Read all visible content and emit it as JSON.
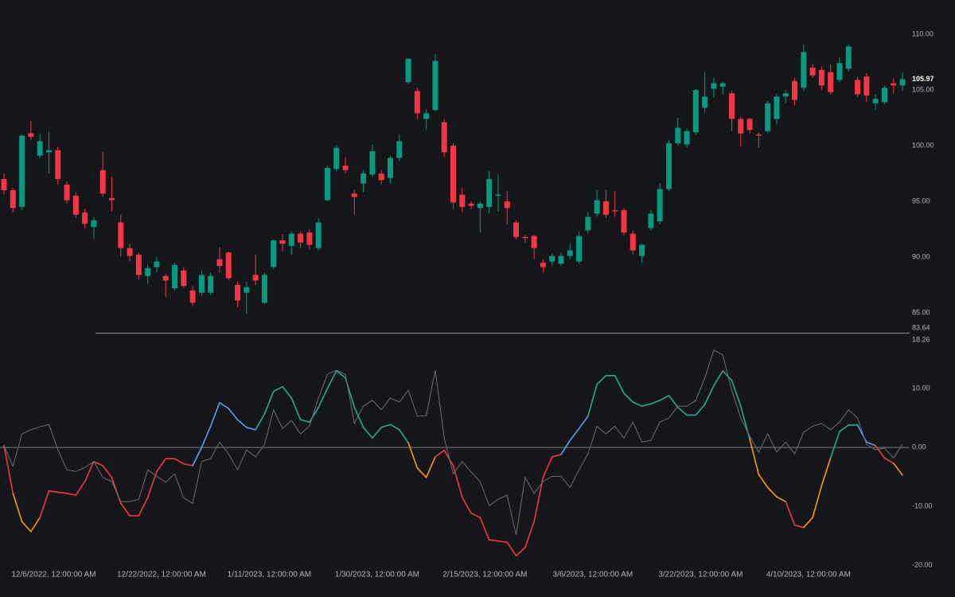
{
  "chart_data": [
    {
      "type": "candlestick",
      "categories": [
        null,
        null,
        null,
        null,
        null,
        "12/6/2022, 12:00:00 AM",
        null,
        null,
        null,
        null,
        null,
        null,
        null,
        null,
        null,
        null,
        null,
        "12/22/2022, 12:00:00 AM",
        null,
        null,
        null,
        null,
        null,
        null,
        null,
        null,
        null,
        null,
        null,
        "1/11/2023, 12:00:00 AM",
        null,
        null,
        null,
        null,
        null,
        null,
        null,
        null,
        null,
        null,
        null,
        "1/30/2023, 12:00:00 AM",
        null,
        null,
        null,
        null,
        null,
        null,
        null,
        null,
        null,
        null,
        null,
        "2/15/2023, 12:00:00 AM",
        null,
        null,
        null,
        null,
        null,
        null,
        null,
        null,
        null,
        null,
        null,
        "3/6/2023, 12:00:00 AM",
        null,
        null,
        null,
        null,
        null,
        null,
        null,
        null,
        null,
        null,
        null,
        "3/22/2023, 12:00:00 AM",
        null,
        null,
        null,
        null,
        null,
        null,
        null,
        null,
        null,
        null,
        null,
        "4/10/2023, 12:00:00 AM",
        null,
        null,
        null,
        null,
        null,
        null,
        null,
        null,
        null,
        null,
        null
      ],
      "open": [
        97.0,
        96.0,
        94.5,
        101.1,
        99.1,
        99.4,
        99.6,
        96.5,
        95.5,
        94.0,
        92.7,
        97.8,
        95.3,
        93.1,
        90.8,
        90.2,
        88.3,
        89.1,
        88.3,
        87.2,
        88.8,
        87.0,
        86.8,
        86.8,
        89.8,
        90.4,
        87.5,
        86.8,
        88.4,
        85.9,
        89.1,
        91.5,
        91.0,
        92.1,
        92.2,
        90.8,
        95.1,
        97.9,
        98.2,
        95.7,
        96.6,
        97.4,
        97.5,
        97.1,
        98.9,
        105.7,
        104.9,
        102.4,
        103.2,
        102.1,
        100.0,
        95.6,
        94.8,
        94.4,
        94.5,
        95.5,
        95.0,
        93.1,
        91.8,
        91.9,
        89.5,
        89.6,
        89.4,
        90.1,
        89.6,
        92.4,
        93.9,
        95.0,
        94.2,
        94.2,
        92.1,
        90.1,
        92.6,
        93.2,
        96.1,
        100.2,
        100.1,
        101.2,
        103.4,
        105.1,
        105.3,
        104.7,
        102.4,
        102.4,
        101.0,
        101.3,
        102.4,
        104.4,
        105.8,
        105.2,
        107.0,
        106.8,
        106.6,
        105.9,
        106.9,
        105.9,
        106.2,
        103.8,
        103.9,
        105.6,
        105.4
      ],
      "high": [
        97.5,
        96.2,
        101.0,
        102.2,
        101.1,
        101.3,
        99.9,
        96.8,
        95.8,
        94.3,
        93.6,
        99.5,
        97.2,
        93.8,
        91.2,
        90.4,
        89.3,
        90.0,
        88.5,
        89.5,
        89.1,
        87.4,
        88.8,
        88.6,
        90.9,
        90.5,
        87.8,
        87.8,
        90.2,
        88.6,
        91.6,
        92.0,
        92.3,
        92.3,
        92.5,
        93.5,
        98.2,
        100.0,
        99.0,
        96.0,
        97.8,
        100.1,
        97.8,
        99.1,
        101.0,
        107.8,
        105.2,
        103.3,
        108.2,
        102.4,
        100.2,
        96.2,
        95.0,
        95.0,
        97.7,
        97.4,
        95.9,
        93.3,
        92.0,
        92.0,
        89.8,
        90.3,
        90.4,
        91.2,
        92.3,
        94.0,
        96.0,
        96.0,
        95.9,
        94.4,
        92.4,
        91.2,
        94.2,
        96.6,
        100.5,
        102.5,
        101.5,
        105.1,
        106.6,
        106.1,
        105.7,
        104.9,
        102.6,
        102.5,
        101.2,
        104.0,
        104.6,
        105.0,
        106.1,
        109.1,
        107.3,
        107.1,
        107.3,
        107.9,
        109.1,
        106.2,
        106.5,
        104.6,
        105.4,
        106.0,
        106.6
      ],
      "low": [
        95.6,
        94.0,
        94.2,
        100.5,
        98.9,
        97.5,
        96.5,
        94.8,
        93.5,
        92.6,
        91.6,
        95.4,
        94.1,
        90.0,
        89.6,
        88.0,
        87.6,
        88.6,
        86.4,
        87.0,
        87.2,
        85.6,
        86.5,
        86.6,
        88.6,
        87.9,
        85.5,
        84.9,
        87.5,
        85.8,
        88.9,
        90.5,
        90.2,
        90.8,
        90.7,
        90.6,
        95.0,
        97.7,
        97.5,
        93.8,
        95.8,
        97.2,
        96.5,
        96.6,
        98.6,
        105.5,
        102.4,
        101.4,
        103.1,
        99.0,
        94.3,
        94.0,
        94.3,
        92.2,
        93.9,
        94.1,
        92.9,
        91.6,
        91.3,
        89.8,
        88.6,
        89.2,
        89.2,
        89.8,
        89.4,
        92.1,
        93.6,
        93.5,
        93.6,
        91.9,
        90.2,
        89.5,
        92.4,
        93.0,
        95.9,
        100.0,
        99.8,
        101.0,
        103.0,
        104.3,
        104.6,
        101.3,
        99.9,
        101.1,
        99.8,
        101.1,
        101.9,
        103.8,
        103.6,
        104.9,
        106.1,
        105.0,
        104.6,
        105.7,
        106.7,
        104.4,
        103.9,
        103.2,
        103.7,
        104.7,
        104.9
      ],
      "close": [
        96.0,
        94.4,
        100.9,
        100.8,
        100.4,
        99.6,
        97.0,
        95.1,
        93.8,
        93.0,
        93.3,
        95.7,
        95.1,
        90.8,
        90.1,
        88.4,
        89.0,
        89.6,
        87.9,
        89.3,
        87.4,
        85.9,
        88.4,
        88.3,
        89.2,
        88.1,
        86.1,
        87.3,
        87.9,
        88.4,
        91.5,
        91.2,
        92.1,
        91.3,
        91.1,
        93.1,
        98.0,
        99.8,
        97.8,
        95.4,
        97.5,
        99.5,
        96.9,
        98.9,
        100.4,
        107.8,
        102.9,
        102.9,
        107.6,
        99.4,
        94.9,
        94.5,
        94.6,
        94.8,
        97.0,
        95.6,
        94.4,
        91.8,
        91.7,
        90.8,
        89.1,
        90.1,
        90.1,
        90.6,
        91.9,
        93.6,
        95.1,
        93.8,
        94.1,
        92.2,
        90.6,
        91.1,
        93.9,
        96.1,
        100.2,
        101.6,
        101.3,
        105.0,
        104.4,
        105.6,
        105.6,
        102.4,
        101.1,
        101.4,
        100.9,
        103.8,
        104.4,
        104.7,
        104.1,
        108.4,
        106.3,
        105.4,
        104.8,
        107.4,
        108.9,
        104.6,
        104.5,
        104.2,
        105.2,
        105.4,
        105.97
      ],
      "up_color": "#089981",
      "down_color": "#f23645",
      "ylim": [
        83.21,
        113.07
      ],
      "yticks": [
        {
          "value": 110,
          "label": "110.00"
        },
        {
          "value": 105,
          "label": "105.00"
        },
        {
          "value": 100,
          "label": "100.00"
        },
        {
          "value": 95,
          "label": "95.00"
        },
        {
          "value": 90,
          "label": "90.00"
        },
        {
          "value": 85,
          "label": "85.00"
        },
        83.64
      ],
      "last_price": 105.97
    },
    {
      "type": "line",
      "ylim": [
        -20.4,
        18.26
      ],
      "yticks": [
        18.26,
        {
          "value": 10,
          "label": "10.00"
        },
        {
          "value": 0,
          "label": "0.00"
        },
        {
          "value": -10,
          "label": "-10.00"
        },
        {
          "value": -20,
          "label": "-20.00"
        }
      ],
      "baseline": 0,
      "series": [
        {
          "values": [
            0.3,
            -7.8,
            -12.6,
            -14.3,
            -11.9,
            -7.4,
            -7.6,
            -7.8,
            -8.1,
            -5.8,
            -2.4,
            -3.1,
            -5.1,
            -9.5,
            -11.6,
            -11.6,
            -8.5,
            -4.1,
            -1.9,
            -1.9,
            -2.8,
            -3.1,
            0,
            3.6,
            7.6,
            6.6,
            4.7,
            3.4,
            3.0,
            5.7,
            9.5,
            10.3,
            8.4,
            4.7,
            4.3,
            6.8,
            10.0,
            13.0,
            11.8,
            6.8,
            3.4,
            1.6,
            3.4,
            3.9,
            3.0,
            0.8,
            -3.5,
            -5.1,
            -1.6,
            -0.5,
            -3.1,
            -8.5,
            -11.2,
            -11.9,
            -15.7,
            -15.9,
            -16.1,
            -18.4,
            -17.0,
            -12.6,
            -5.1,
            -1.6,
            -1.2,
            1.2,
            3.2,
            5.3,
            10.7,
            12.2,
            12.2,
            9.2,
            7.7,
            7.0,
            7.4,
            8.0,
            8.8,
            6.8,
            5.5,
            5.5,
            7.3,
            10.5,
            13.0,
            11.4,
            7.0,
            1.4,
            -4.6,
            -6.8,
            -8.4,
            -9.2,
            -13.2,
            -13.6,
            -11.9,
            -6.5,
            -1.8,
            2.7,
            3.8,
            3.8,
            0.9,
            0.3,
            -1.8,
            -2.7,
            -4.7
          ],
          "colors": [
            "#f23645",
            "#f23645",
            "#ff9800",
            "#ff9800",
            "#ff9800",
            "#f23645",
            "#f23645",
            "#f23645",
            "#f23645",
            "#f23645",
            "#f23645",
            "#f23645",
            "#f23645",
            "#f23645",
            "#f23645",
            "#f23645",
            "#f23645",
            "#f23645",
            "#f23645",
            "#f23645",
            "#f23645",
            "#f23645",
            "#5b9cf6",
            "#5b9cf6",
            "#5b9cf6",
            "#5b9cf6",
            "#5b9cf6",
            "#5b9cf6",
            "#5b9cf6",
            "#22ab94",
            "#22ab94",
            "#22ab94",
            "#22ab94",
            "#22ab94",
            "#22ab94",
            "#22ab94",
            "#22ab94",
            "#22ab94",
            "#22ab94",
            "#22ab94",
            "#22ab94",
            "#22ab94",
            "#22ab94",
            "#22ab94",
            "#22ab94",
            "#22ab94",
            "#ff9800",
            "#ff9800",
            "#ff9800",
            "#f23645",
            "#f23645",
            "#f23645",
            "#f23645",
            "#f23645",
            "#f23645",
            "#f23645",
            "#f23645",
            "#f23645",
            "#f23645",
            "#f23645",
            "#f23645",
            "#f23645",
            "#f23645",
            "#5b9cf6",
            "#5b9cf6",
            "#5b9cf6",
            "#22ab94",
            "#22ab94",
            "#22ab94",
            "#22ab94",
            "#22ab94",
            "#22ab94",
            "#22ab94",
            "#22ab94",
            "#22ab94",
            "#22ab94",
            "#22ab94",
            "#22ab94",
            "#22ab94",
            "#22ab94",
            "#22ab94",
            "#22ab94",
            "#22ab94",
            "#22ab94",
            "#ff9800",
            "#ff9800",
            "#ff9800",
            "#ff9800",
            "#f23645",
            "#f23645",
            "#ff9800",
            "#ff9800",
            "#ff9800",
            "#22ab94",
            "#22ab94",
            "#22ab94",
            "#5b9cf6",
            "#5b9cf6",
            "#f23645",
            "#f23645",
            "#ff9800"
          ]
        },
        {
          "color": "#6a6d78",
          "values": [
            0.3,
            -3.2,
            2.3,
            3.0,
            3.5,
            3.9,
            -0.4,
            -3.8,
            -4.1,
            -3.4,
            -2.4,
            -5.1,
            -5.8,
            -9.2,
            -9.2,
            -8.8,
            -3.8,
            -4.9,
            -5.9,
            -4.5,
            -8.6,
            -9.5,
            -2.4,
            -1.9,
            0.9,
            -1.1,
            -3.8,
            -0.4,
            -1.6,
            0.5,
            6.4,
            3.2,
            4.6,
            2.3,
            3.6,
            8.4,
            12.4,
            13.1,
            12.4,
            4.1,
            7.0,
            8.0,
            6.4,
            8.4,
            7.7,
            9.7,
            5.3,
            5.4,
            13.1,
            1.6,
            -4.5,
            -2.4,
            -4.2,
            -5.8,
            -9.9,
            -8.8,
            -8.1,
            -14.9,
            -5.1,
            -7.8,
            -5.8,
            -4.9,
            -4.9,
            -6.8,
            -3.8,
            -1.1,
            3.6,
            2.3,
            3.6,
            1.6,
            4.3,
            0.9,
            1.2,
            4.3,
            5.0,
            7.0,
            7.0,
            8.0,
            11.8,
            16.5,
            15.7,
            9.7,
            5.0,
            1.9,
            -0.8,
            2.3,
            -0.8,
            0.9,
            -1.1,
            2.6,
            3.6,
            4.1,
            3.0,
            4.3,
            6.4,
            5.0,
            0.5,
            -0.4,
            -0.1,
            -1.8,
            0.5
          ]
        }
      ]
    }
  ]
}
